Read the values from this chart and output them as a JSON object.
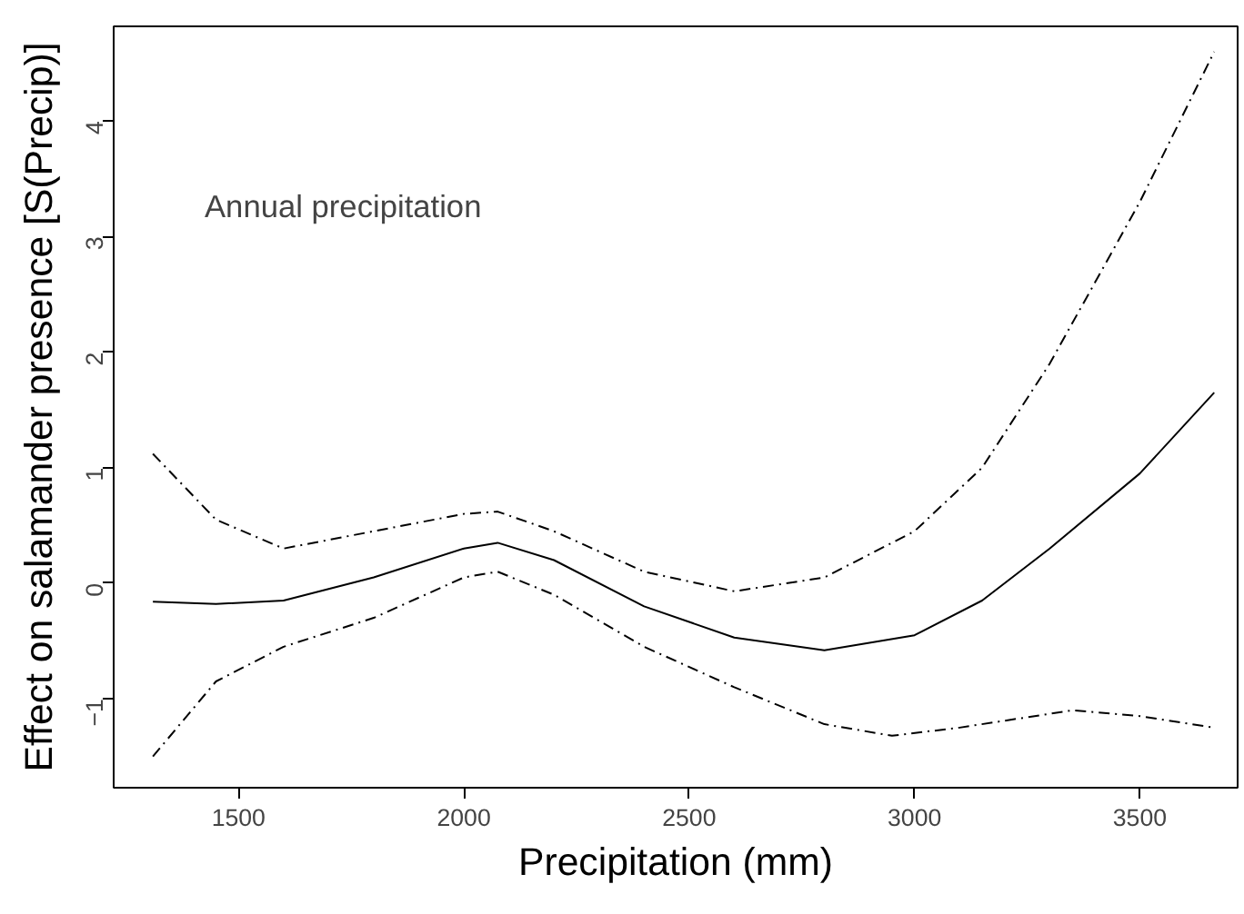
{
  "chart_data": {
    "type": "line",
    "xlabel": "Precipitation (mm)",
    "ylabel": "Effect on salamander presence [S(Precip)]",
    "annotations": [
      "Annual precipitation"
    ],
    "xlim": [
      1223,
      3717
    ],
    "ylim": [
      -1.77,
      4.82
    ],
    "xticks": [
      1500,
      2000,
      2500,
      3000,
      3500
    ],
    "yticks": [
      -1,
      0,
      1,
      2,
      3,
      4
    ],
    "grid": false,
    "series": [
      {
        "color": "#000000",
        "line_style": "solid",
        "x": [
          1310,
          1450,
          1600,
          1800,
          2000,
          2075,
          2200,
          2400,
          2600,
          2800,
          3000,
          3150,
          3300,
          3500,
          3665
        ],
        "values": [
          -0.16,
          -0.18,
          -0.15,
          0.05,
          0.3,
          0.35,
          0.2,
          -0.2,
          -0.47,
          -0.58,
          -0.45,
          -0.15,
          0.3,
          0.95,
          1.65
        ]
      },
      {
        "color": "#000000",
        "line_style": "dashed",
        "x": [
          1310,
          1450,
          1600,
          1800,
          2000,
          2075,
          2200,
          2400,
          2600,
          2800,
          3000,
          3150,
          3300,
          3400,
          3500,
          3665
        ],
        "values": [
          1.12,
          0.55,
          0.3,
          0.45,
          0.6,
          0.62,
          0.45,
          0.1,
          -0.07,
          0.05,
          0.45,
          1.0,
          1.9,
          2.6,
          3.3,
          4.6
        ]
      },
      {
        "color": "#000000",
        "line_style": "dashed",
        "x": [
          1310,
          1450,
          1600,
          1800,
          2000,
          2075,
          2200,
          2400,
          2600,
          2800,
          2950,
          3100,
          3350,
          3500,
          3665
        ],
        "values": [
          -1.5,
          -0.85,
          -0.55,
          -0.3,
          0.05,
          0.1,
          -0.1,
          -0.55,
          -0.9,
          -1.22,
          -1.32,
          -1.25,
          -1.1,
          -1.15,
          -1.25
        ]
      }
    ]
  }
}
